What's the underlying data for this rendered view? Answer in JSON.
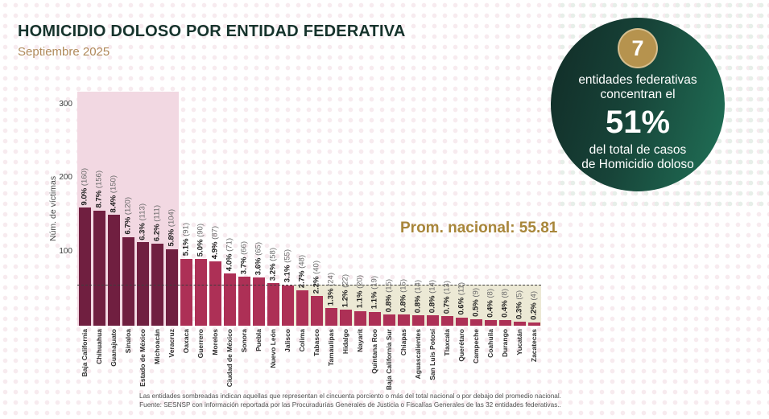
{
  "header": {
    "title": "HOMICIDIO DOLOSO POR ENTIDAD FEDERATIVA",
    "subtitle": "Septiembre 2025"
  },
  "badge": {
    "count": "7",
    "line1": "entidades federativas",
    "line2": "concentran el",
    "percent": "51%",
    "line3": "del total de casos",
    "line4": "de Homicidio doloso"
  },
  "annotation": {
    "national_average_label": "Prom. nacional: 55.81"
  },
  "chart_data": {
    "type": "bar",
    "title": "HOMICIDIO DOLOSO POR ENTIDAD FEDERATIVA",
    "xlabel": "",
    "ylabel": "Núm. de víctimas",
    "yticks": [
      100,
      200,
      300
    ],
    "ylim": [
      0,
      317
    ],
    "average": 55.81,
    "highlight_top_n": 7,
    "below_average_start_index": 15,
    "colors": {
      "bar_dark": "#701f40",
      "bar_light": "#ad3056",
      "region_top_concentration": "#f2d8e2",
      "region_below_average": "#ece9d5",
      "average_line": "#3d3d3d",
      "accent_gold": "#a8863a",
      "badge_green_dark": "#12302a",
      "badge_green_light": "#1f6b53"
    },
    "categories": [
      "Baja California",
      "Chihuahua",
      "Guanajuato",
      "Sinaloa",
      "Estado de México",
      "Michoacán",
      "Veracruz",
      "Oaxaca",
      "Guerrero",
      "Morelos",
      "Ciudad de México",
      "Sonora",
      "Puebla",
      "Nuevo León",
      "Jalisco",
      "Colima",
      "Tabasco",
      "Tamaulipas",
      "Hidalgo",
      "Nayarit",
      "Quintana Roo",
      "Baja California Sur",
      "Chiapas",
      "Aguascalientes",
      "San Luis Potosí",
      "Tlaxcala",
      "Querétaro",
      "Campeche",
      "Coahuila",
      "Durango",
      "Yucatán",
      "Zacatecas"
    ],
    "values": [
      160,
      156,
      150,
      120,
      113,
      111,
      104,
      91,
      90,
      87,
      71,
      66,
      65,
      58,
      55,
      48,
      40,
      24,
      22,
      20,
      19,
      15,
      15,
      14,
      14,
      13,
      11,
      9,
      8,
      8,
      5,
      4
    ],
    "pct_labels": [
      "9.0%",
      "8.7%",
      "8.4%",
      "6.7%",
      "6.3%",
      "6.2%",
      "5.8%",
      "5.1%",
      "5.0%",
      "4.9%",
      "4.0%",
      "3.7%",
      "3.6%",
      "3.2%",
      "3.1%",
      "2.7%",
      "2.2%",
      "1.3%",
      "1.2%",
      "1.1%",
      "1.1%",
      "0.8%",
      "0.8%",
      "0.8%",
      "0.8%",
      "0.7%",
      "0.6%",
      "0.5%",
      "0.4%",
      "0.4%",
      "0.3%",
      "0.2%"
    ]
  },
  "footer": {
    "line1": "Las entidades sombreadas indican aquellas que representan el cincuenta porciento o más del total nacional o por debajo del promedio nacional.",
    "line2": "Fuente: SESNSP con información reportada por las Procuradurías Generales de Justicia o Fiscalías Generales de las 32 entidades federativas.."
  }
}
